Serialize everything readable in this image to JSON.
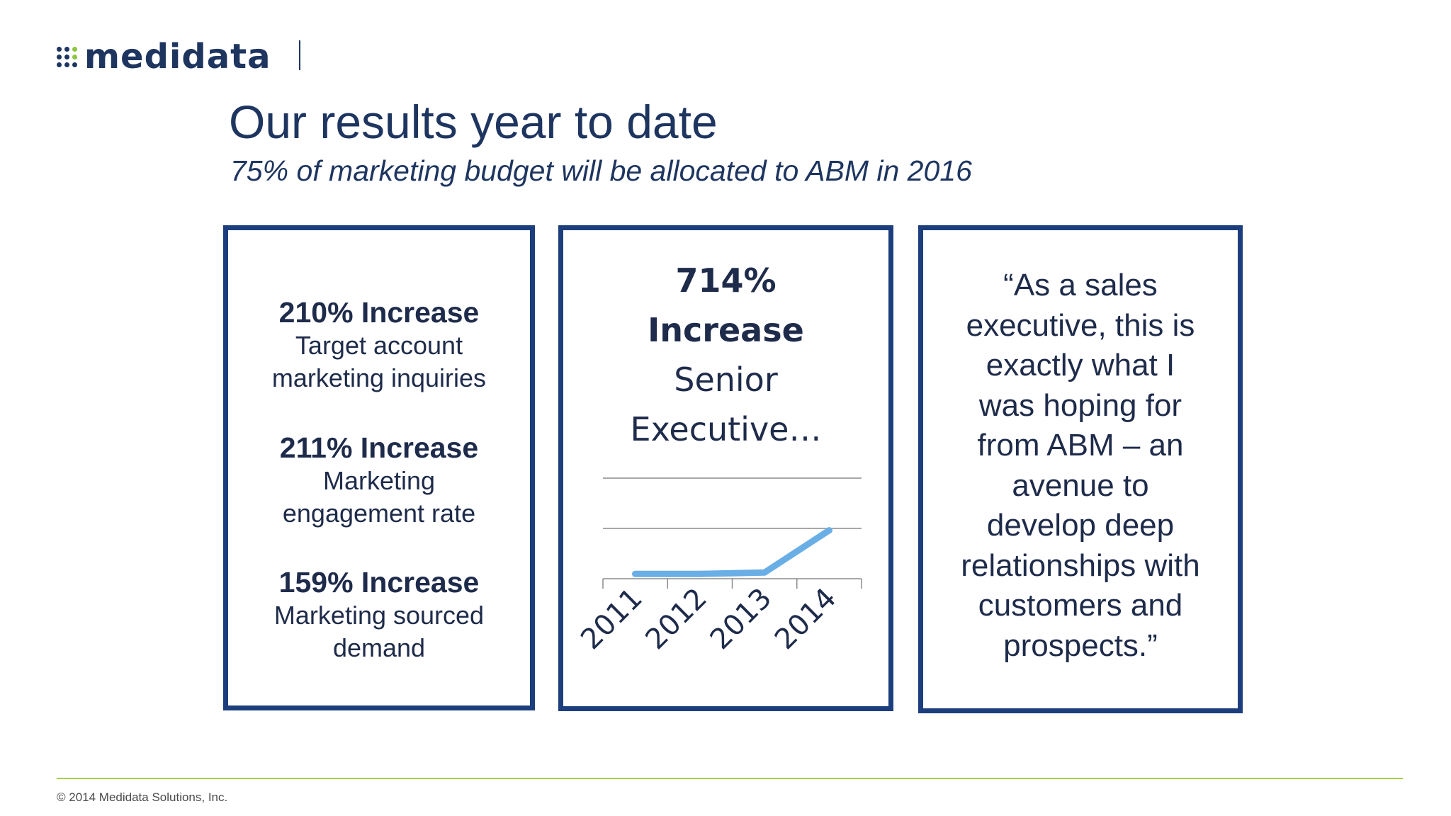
{
  "logo": {
    "word": "medidata"
  },
  "title": "Our results year to date",
  "subtitle": "75% of marketing budget will be allocated to ABM in 2016",
  "stats": [
    {
      "head": "210% Increase",
      "lines": [
        "Target account",
        "marketing inquiries"
      ]
    },
    {
      "head": "211% Increase",
      "lines": [
        "Marketing",
        "engagement rate"
      ]
    },
    {
      "head": "159% Increase",
      "lines": [
        "Marketing sourced",
        "demand"
      ]
    }
  ],
  "chart_data": {
    "type": "line",
    "title_lines": [
      "714%",
      "Increase",
      "Senior",
      "Executive…"
    ],
    "categories": [
      "2011",
      "2012",
      "2013",
      "2014"
    ],
    "series": [
      {
        "values": [
          10,
          10,
          13,
          101
        ]
      }
    ],
    "ylim": [
      0,
      210
    ],
    "grid": true,
    "line_color": "#6aaee6"
  },
  "quote": {
    "lines": [
      "“As a sales",
      "executive, this is",
      "exactly what I",
      "was hoping for",
      "from ABM – an",
      "avenue to",
      "develop deep",
      "relationships with",
      "customers and",
      "prospects.”"
    ]
  },
  "footer": {
    "copyright": "© 2014 Medidata Solutions, Inc."
  },
  "colors": {
    "brand_navy": "#1e3560",
    "box_border": "#1c3e7d",
    "accent_green": "#8dc63f",
    "footer_line": "#a6cf4a"
  }
}
